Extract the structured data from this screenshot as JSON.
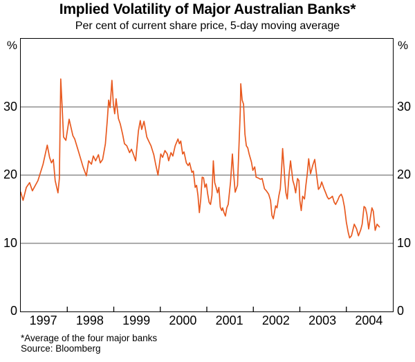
{
  "chart": {
    "title": "Implied Volatility of Major Australian Banks*",
    "subtitle": "Per cent of current share price, 5-day moving average",
    "footnote": "*Average of the four major banks",
    "source": "Source: Bloomberg"
  },
  "axes": {
    "y": {
      "unit_left": "%",
      "unit_right": "%",
      "min": 0,
      "max": 40,
      "tick_labels": [
        30,
        20,
        10,
        0
      ],
      "gridlines": [
        10,
        20,
        30
      ]
    },
    "x": {
      "start_year": 1997,
      "end_year": 2005,
      "year_labels": [
        1997,
        1998,
        1999,
        2000,
        2001,
        2002,
        2003,
        2004
      ]
    }
  },
  "colors": {
    "line": "#E8591F",
    "grid": "#8E8E8E",
    "frame": "#000000",
    "background": "#FFFFFF",
    "text": "#000000"
  },
  "chart_data": {
    "type": "line",
    "title": "Implied Volatility of Major Australian Banks*",
    "subtitle": "Per cent of current share price, 5-day moving average",
    "xlabel": "",
    "ylabel": "%",
    "x_range": [
      1997,
      2005
    ],
    "ylim": [
      0,
      40
    ],
    "y_ticks": [
      0,
      10,
      20,
      30
    ],
    "grid": "horizontal only at 10, 20, 30",
    "legend_position": "none",
    "footnotes": [
      "*Average of the four major banks",
      "Source: Bloomberg"
    ],
    "series": [
      {
        "name": "Implied volatility of major Australian banks, 5-day moving average (per cent of current share price)",
        "color": "#E8591F",
        "points": [
          [
            1997.0,
            17.5
          ],
          [
            1997.05,
            16.3
          ],
          [
            1997.12,
            18.2
          ],
          [
            1997.19,
            18.9
          ],
          [
            1997.25,
            17.7
          ],
          [
            1997.37,
            19.2
          ],
          [
            1997.48,
            21.6
          ],
          [
            1997.57,
            24.4
          ],
          [
            1997.62,
            22.6
          ],
          [
            1997.66,
            21.8
          ],
          [
            1997.7,
            22.3
          ],
          [
            1997.74,
            19.2
          ],
          [
            1997.8,
            17.4
          ],
          [
            1997.83,
            19.5
          ],
          [
            1997.86,
            34.1
          ],
          [
            1997.89,
            30.0
          ],
          [
            1997.92,
            25.6
          ],
          [
            1997.97,
            25.1
          ],
          [
            1998.04,
            28.2
          ],
          [
            1998.12,
            25.8
          ],
          [
            1998.16,
            25.3
          ],
          [
            1998.24,
            23.5
          ],
          [
            1998.34,
            21.2
          ],
          [
            1998.41,
            19.9
          ],
          [
            1998.46,
            22.1
          ],
          [
            1998.52,
            21.6
          ],
          [
            1998.56,
            22.8
          ],
          [
            1998.61,
            22.1
          ],
          [
            1998.67,
            23.0
          ],
          [
            1998.71,
            21.8
          ],
          [
            1998.76,
            22.3
          ],
          [
            1998.82,
            24.6
          ],
          [
            1998.86,
            28.0
          ],
          [
            1998.89,
            31.0
          ],
          [
            1998.92,
            29.9
          ],
          [
            1998.96,
            33.9
          ],
          [
            1998.99,
            30.5
          ],
          [
            1999.02,
            29.0
          ],
          [
            1999.05,
            31.2
          ],
          [
            1999.1,
            28.3
          ],
          [
            1999.14,
            27.5
          ],
          [
            1999.19,
            26.0
          ],
          [
            1999.23,
            24.6
          ],
          [
            1999.28,
            24.3
          ],
          [
            1999.34,
            23.3
          ],
          [
            1999.38,
            23.8
          ],
          [
            1999.43,
            22.9
          ],
          [
            1999.47,
            22.1
          ],
          [
            1999.53,
            26.5
          ],
          [
            1999.57,
            28.0
          ],
          [
            1999.6,
            26.7
          ],
          [
            1999.65,
            27.9
          ],
          [
            1999.71,
            25.6
          ],
          [
            1999.75,
            25.0
          ],
          [
            1999.8,
            24.3
          ],
          [
            1999.86,
            23.0
          ],
          [
            1999.9,
            21.6
          ],
          [
            1999.95,
            20.0
          ],
          [
            2000.01,
            23.1
          ],
          [
            2000.05,
            22.6
          ],
          [
            2000.1,
            23.6
          ],
          [
            2000.15,
            23.1
          ],
          [
            2000.18,
            22.1
          ],
          [
            2000.23,
            23.3
          ],
          [
            2000.27,
            22.8
          ],
          [
            2000.32,
            24.3
          ],
          [
            2000.38,
            25.3
          ],
          [
            2000.41,
            24.6
          ],
          [
            2000.44,
            25.0
          ],
          [
            2000.48,
            23.1
          ],
          [
            2000.51,
            23.4
          ],
          [
            2000.56,
            21.8
          ],
          [
            2000.6,
            21.4
          ],
          [
            2000.63,
            21.8
          ],
          [
            2000.68,
            20.4
          ],
          [
            2000.71,
            20.6
          ],
          [
            2000.75,
            18.2
          ],
          [
            2000.78,
            18.5
          ],
          [
            2000.81,
            17.0
          ],
          [
            2000.84,
            14.5
          ],
          [
            2000.87,
            16.5
          ],
          [
            2000.9,
            19.7
          ],
          [
            2000.93,
            19.6
          ],
          [
            2000.96,
            18.2
          ],
          [
            2000.99,
            18.7
          ],
          [
            2001.02,
            17.2
          ],
          [
            2001.05,
            16.0
          ],
          [
            2001.08,
            15.7
          ],
          [
            2001.11,
            17.0
          ],
          [
            2001.14,
            22.1
          ],
          [
            2001.17,
            18.9
          ],
          [
            2001.2,
            18.2
          ],
          [
            2001.23,
            17.4
          ],
          [
            2001.26,
            18.2
          ],
          [
            2001.29,
            15.3
          ],
          [
            2001.32,
            14.8
          ],
          [
            2001.34,
            15.2
          ],
          [
            2001.37,
            14.5
          ],
          [
            2001.4,
            14.0
          ],
          [
            2001.43,
            15.2
          ],
          [
            2001.46,
            15.7
          ],
          [
            2001.51,
            19.0
          ],
          [
            2001.55,
            23.1
          ],
          [
            2001.58,
            20.0
          ],
          [
            2001.61,
            17.5
          ],
          [
            2001.66,
            18.5
          ],
          [
            2001.69,
            24.0
          ],
          [
            2001.72,
            29.5
          ],
          [
            2001.73,
            33.4
          ],
          [
            2001.76,
            31.0
          ],
          [
            2001.79,
            30.4
          ],
          [
            2001.82,
            26.0
          ],
          [
            2001.85,
            24.3
          ],
          [
            2001.88,
            24.0
          ],
          [
            2001.91,
            23.1
          ],
          [
            2001.96,
            21.9
          ],
          [
            2001.99,
            20.7
          ],
          [
            2002.03,
            21.2
          ],
          [
            2002.06,
            19.7
          ],
          [
            2002.1,
            19.6
          ],
          [
            2002.15,
            19.4
          ],
          [
            2002.19,
            19.5
          ],
          [
            2002.24,
            18.0
          ],
          [
            2002.28,
            17.7
          ],
          [
            2002.33,
            17.2
          ],
          [
            2002.37,
            16.3
          ],
          [
            2002.4,
            14.1
          ],
          [
            2002.43,
            13.6
          ],
          [
            2002.48,
            15.5
          ],
          [
            2002.51,
            15.2
          ],
          [
            2002.55,
            17.0
          ],
          [
            2002.58,
            18.0
          ],
          [
            2002.61,
            21.2
          ],
          [
            2002.63,
            23.9
          ],
          [
            2002.66,
            21.1
          ],
          [
            2002.68,
            19.0
          ],
          [
            2002.7,
            17.4
          ],
          [
            2002.73,
            16.5
          ],
          [
            2002.77,
            20.2
          ],
          [
            2002.8,
            22.1
          ],
          [
            2002.85,
            19.2
          ],
          [
            2002.88,
            18.5
          ],
          [
            2002.91,
            17.4
          ],
          [
            2002.95,
            19.5
          ],
          [
            2002.98,
            19.2
          ],
          [
            2003.0,
            16.3
          ],
          [
            2003.03,
            14.8
          ],
          [
            2003.06,
            16.9
          ],
          [
            2003.1,
            16.5
          ],
          [
            2003.13,
            18.5
          ],
          [
            2003.16,
            20.2
          ],
          [
            2003.19,
            22.4
          ],
          [
            2003.23,
            20.2
          ],
          [
            2003.28,
            21.5
          ],
          [
            2003.32,
            22.3
          ],
          [
            2003.37,
            19.5
          ],
          [
            2003.4,
            17.9
          ],
          [
            2003.44,
            18.3
          ],
          [
            2003.47,
            19.0
          ],
          [
            2003.52,
            18.0
          ],
          [
            2003.55,
            17.5
          ],
          [
            2003.59,
            16.8
          ],
          [
            2003.62,
            16.5
          ],
          [
            2003.67,
            16.7
          ],
          [
            2003.7,
            16.9
          ],
          [
            2003.74,
            16.0
          ],
          [
            2003.77,
            15.7
          ],
          [
            2003.82,
            16.4
          ],
          [
            2003.85,
            16.9
          ],
          [
            2003.89,
            17.2
          ],
          [
            2003.92,
            16.7
          ],
          [
            2003.96,
            15.3
          ],
          [
            2004.0,
            13.1
          ],
          [
            2004.04,
            11.6
          ],
          [
            2004.07,
            10.8
          ],
          [
            2004.11,
            11.1
          ],
          [
            2004.17,
            12.8
          ],
          [
            2004.22,
            12.1
          ],
          [
            2004.26,
            11.1
          ],
          [
            2004.31,
            12.0
          ],
          [
            2004.34,
            12.8
          ],
          [
            2004.38,
            15.4
          ],
          [
            2004.41,
            15.2
          ],
          [
            2004.44,
            14.3
          ],
          [
            2004.48,
            12.1
          ],
          [
            2004.51,
            13.5
          ],
          [
            2004.55,
            15.2
          ],
          [
            2004.58,
            14.7
          ],
          [
            2004.62,
            11.9
          ],
          [
            2004.66,
            12.8
          ],
          [
            2004.71,
            12.4
          ]
        ]
      }
    ]
  }
}
